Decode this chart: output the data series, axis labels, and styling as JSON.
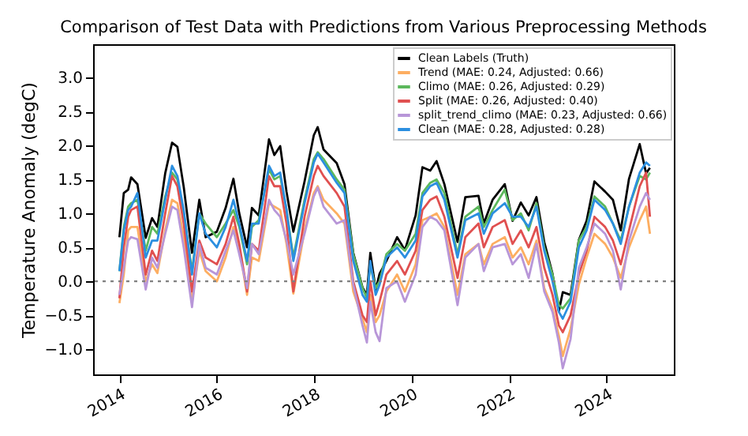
{
  "chart_data": {
    "type": "line",
    "title": "Comparison of Test Data with Predictions from Various Preprocessing Methods",
    "ylabel": "Temperature Anomaly (degC)",
    "x": [
      2014.0,
      2014.09,
      2014.18,
      2014.24,
      2014.37,
      2014.54,
      2014.67,
      2014.78,
      2014.94,
      2015.08,
      2015.19,
      2015.32,
      2015.49,
      2015.64,
      2015.77,
      2016.0,
      2016.18,
      2016.34,
      2016.46,
      2016.62,
      2016.72,
      2016.86,
      2017.07,
      2017.18,
      2017.3,
      2017.43,
      2017.57,
      2017.8,
      2017.99,
      2018.07,
      2018.19,
      2018.46,
      2018.62,
      2018.8,
      2018.99,
      2019.08,
      2019.15,
      2019.26,
      2019.34,
      2019.48,
      2019.7,
      2019.86,
      2020.08,
      2020.22,
      2020.38,
      2020.51,
      2020.67,
      2020.94,
      2021.1,
      2021.37,
      2021.48,
      2021.66,
      2021.91,
      2022.07,
      2022.24,
      2022.4,
      2022.56,
      2022.72,
      2022.89,
      2023.02,
      2023.1,
      2023.26,
      2023.43,
      2023.59,
      2023.75,
      2023.97,
      2024.13,
      2024.29,
      2024.46,
      2024.68,
      2024.81,
      2024.89
    ],
    "series": [
      {
        "name": "Clean Labels (Truth)",
        "color": "#000000",
        "values": [
          0.65,
          1.3,
          1.35,
          1.53,
          1.43,
          0.64,
          0.93,
          0.8,
          1.59,
          2.04,
          1.98,
          1.39,
          0.42,
          1.2,
          0.65,
          0.73,
          1.08,
          1.51,
          1.0,
          0.5,
          1.08,
          0.97,
          2.09,
          1.86,
          1.99,
          1.32,
          0.73,
          1.47,
          2.15,
          2.27,
          1.94,
          1.74,
          1.43,
          0.42,
          -0.09,
          -0.2,
          0.42,
          -0.12,
          0.11,
          0.3,
          0.65,
          0.46,
          0.97,
          1.68,
          1.63,
          1.77,
          1.43,
          0.58,
          1.24,
          1.26,
          0.85,
          1.2,
          1.43,
          0.89,
          1.16,
          0.97,
          1.24,
          0.58,
          0.11,
          -0.44,
          -0.16,
          -0.2,
          0.61,
          0.89,
          1.47,
          1.32,
          1.2,
          0.75,
          1.51,
          2.02,
          1.59,
          1.67
        ]
      },
      {
        "name": "Trend (MAE: 0.24, Adjusted: 0.66)",
        "color": "#fdae61",
        "values": [
          -0.32,
          0.1,
          0.75,
          0.8,
          0.8,
          0.0,
          0.25,
          0.12,
          0.75,
          1.2,
          1.15,
          0.65,
          -0.3,
          0.45,
          0.15,
          0.0,
          0.35,
          0.8,
          0.5,
          -0.2,
          0.35,
          0.3,
          1.15,
          1.1,
          1.05,
          0.55,
          -0.18,
          0.75,
          1.3,
          1.4,
          1.2,
          1.0,
          0.85,
          -0.15,
          -0.55,
          -0.75,
          -0.2,
          -0.6,
          -0.5,
          -0.15,
          0.1,
          -0.15,
          0.25,
          0.9,
          0.95,
          1.0,
          0.8,
          -0.2,
          0.4,
          0.55,
          0.25,
          0.55,
          0.65,
          0.35,
          0.5,
          0.25,
          0.6,
          -0.1,
          -0.4,
          -0.8,
          -1.1,
          -0.7,
          -0.05,
          0.35,
          0.7,
          0.55,
          0.35,
          0.05,
          0.5,
          0.9,
          1.1,
          0.7
        ]
      },
      {
        "name": "Climo (MAE: 0.26, Adjusted: 0.29)",
        "color": "#5cb85c",
        "values": [
          0.15,
          0.8,
          1.1,
          1.15,
          1.2,
          0.45,
          0.8,
          0.7,
          1.25,
          1.6,
          1.5,
          1.0,
          0.15,
          1.0,
          0.85,
          0.65,
          0.85,
          1.05,
          0.8,
          0.25,
          0.8,
          0.9,
          1.65,
          1.5,
          1.55,
          1.05,
          0.35,
          1.2,
          1.8,
          1.9,
          1.8,
          1.5,
          1.35,
          0.4,
          -0.1,
          -0.25,
          0.25,
          -0.1,
          0.0,
          0.4,
          0.55,
          0.45,
          0.7,
          1.3,
          1.45,
          1.5,
          1.3,
          0.4,
          0.95,
          1.1,
          0.8,
          1.05,
          1.35,
          0.9,
          1.0,
          0.75,
          1.15,
          0.5,
          0.1,
          -0.35,
          -0.4,
          -0.25,
          0.6,
          0.8,
          1.25,
          1.1,
          0.85,
          0.6,
          1.1,
          1.55,
          1.5,
          1.6
        ]
      },
      {
        "name": "Split (MAE: 0.26, Adjusted: 0.40)",
        "color": "#e05050",
        "values": [
          -0.25,
          0.5,
          0.95,
          1.05,
          1.1,
          0.1,
          0.45,
          0.3,
          1.0,
          1.55,
          1.4,
          0.85,
          -0.15,
          0.6,
          0.35,
          0.25,
          0.55,
          0.95,
          0.55,
          -0.15,
          0.55,
          0.45,
          1.55,
          1.4,
          1.4,
          0.85,
          -0.15,
          0.95,
          1.55,
          1.7,
          1.55,
          1.3,
          1.1,
          0.0,
          -0.5,
          -0.6,
          0.0,
          -0.5,
          -0.3,
          0.1,
          0.3,
          0.1,
          0.45,
          1.05,
          1.2,
          1.25,
          0.95,
          0.05,
          0.65,
          0.85,
          0.5,
          0.8,
          0.9,
          0.55,
          0.75,
          0.5,
          0.8,
          0.2,
          -0.2,
          -0.65,
          -0.75,
          -0.5,
          0.1,
          0.45,
          0.95,
          0.8,
          0.6,
          0.25,
          0.75,
          1.4,
          1.6,
          0.95
        ]
      },
      {
        "name": "split_trend_climo (MAE: 0.23, Adjusted: 0.66)",
        "color": "#b896d8",
        "values": [
          -0.2,
          0.2,
          0.6,
          0.65,
          0.62,
          -0.12,
          0.35,
          0.2,
          0.7,
          1.1,
          1.05,
          0.5,
          -0.38,
          0.55,
          0.2,
          0.1,
          0.45,
          0.75,
          0.4,
          -0.1,
          0.55,
          0.4,
          1.2,
          1.05,
          0.95,
          0.6,
          0.1,
          0.7,
          1.25,
          1.38,
          1.1,
          0.85,
          0.9,
          -0.05,
          -0.65,
          -0.9,
          -0.3,
          -0.75,
          -0.88,
          -0.1,
          0.0,
          -0.3,
          0.1,
          0.8,
          0.95,
          0.9,
          0.75,
          -0.35,
          0.35,
          0.55,
          0.15,
          0.5,
          0.55,
          0.25,
          0.4,
          0.05,
          0.55,
          -0.15,
          -0.45,
          -0.9,
          -1.28,
          -0.85,
          0.2,
          0.5,
          0.85,
          0.7,
          0.45,
          -0.12,
          0.6,
          1.1,
          1.3,
          1.2
        ]
      },
      {
        "name": "Clean (MAE: 0.28, Adjusted: 0.28)",
        "color": "#2b8fe0",
        "values": [
          0.15,
          0.75,
          1.05,
          1.1,
          1.3,
          0.35,
          0.6,
          0.6,
          1.2,
          1.7,
          1.55,
          1.05,
          0.1,
          1.0,
          0.7,
          0.5,
          0.8,
          1.2,
          0.85,
          0.3,
          0.85,
          0.85,
          1.7,
          1.55,
          1.6,
          1.05,
          0.3,
          1.15,
          1.75,
          1.88,
          1.75,
          1.45,
          1.3,
          0.3,
          -0.2,
          -0.3,
          0.3,
          -0.2,
          -0.05,
          0.35,
          0.5,
          0.35,
          0.6,
          1.25,
          1.4,
          1.45,
          1.2,
          0.35,
          0.9,
          1.0,
          0.7,
          1.0,
          1.15,
          0.95,
          0.95,
          0.8,
          1.1,
          0.45,
          0.0,
          -0.45,
          -0.55,
          -0.3,
          0.5,
          0.75,
          1.2,
          1.05,
          0.85,
          0.55,
          1.1,
          1.6,
          1.75,
          1.7
        ]
      }
    ],
    "xlim": [
      2013.46,
      2025.38
    ],
    "xticks": [
      2014,
      2016,
      2018,
      2020,
      2022,
      2024
    ],
    "ylim": [
      -1.37,
      3.49
    ],
    "yticks": [
      {
        "value": -1,
        "label": "−1.0"
      },
      {
        "value": -0.5,
        "label": "−0.5"
      },
      {
        "value": 0,
        "label": "0.0"
      },
      {
        "value": 0.5,
        "label": "0.5"
      },
      {
        "value": 1,
        "label": "1.0"
      },
      {
        "value": 1.5,
        "label": "1.5"
      },
      {
        "value": 2,
        "label": "2.0"
      },
      {
        "value": 2.5,
        "label": "2.5"
      },
      {
        "value": 3,
        "label": "3.0"
      }
    ],
    "ref_lines": [
      {
        "axis": "y",
        "value": 0,
        "color": "#808080",
        "line_style": "dotted"
      }
    ],
    "legend": "top right",
    "grid": false
  }
}
